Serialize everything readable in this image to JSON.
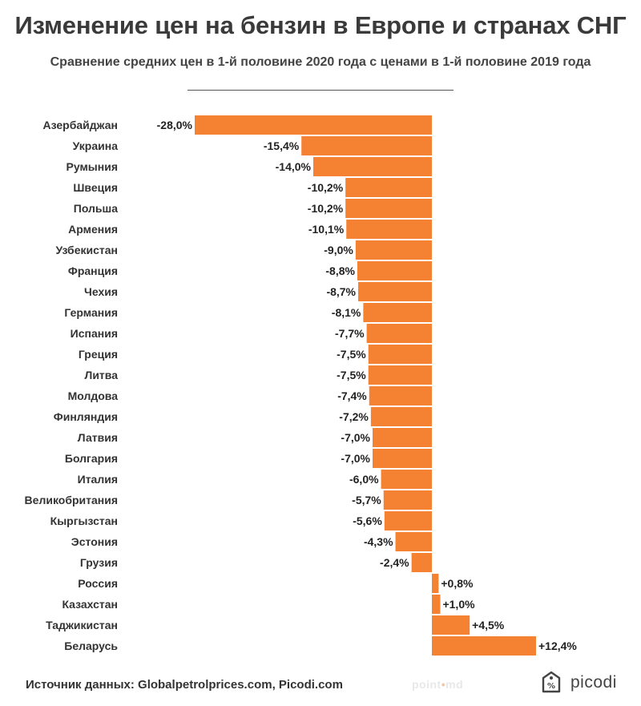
{
  "header": {
    "title": "Изменение цен на бензин в Европе и странах СНГ",
    "subtitle": "Сравнение средних цен в 1-й половине 2020 года с ценами в 1-й половине 2019 года"
  },
  "footer": {
    "source": "Источник данных: Globalpetrolprices.com, Picodi.com",
    "watermark_left": "point",
    "watermark_dot": "•",
    "watermark_right": "md",
    "brand_name": "picodi"
  },
  "colors": {
    "bar": "#f58233",
    "text": "#333333"
  },
  "chart_data": {
    "type": "bar",
    "orientation": "horizontal",
    "title": "Изменение цен на бензин в Европе и странах СНГ",
    "xlabel": "",
    "ylabel": "",
    "xlim": [
      -28,
      12.4
    ],
    "categories": [
      "Азербайджан",
      "Украина",
      "Румыния",
      "Швеция",
      "Польша",
      "Армения",
      "Узбекистан",
      "Франция",
      "Чехия",
      "Германия",
      "Испания",
      "Греция",
      "Литва",
      "Молдова",
      "Финляндия",
      "Латвия",
      "Болгария",
      "Италия",
      "Великобритания",
      "Кыргызстан",
      "Эстония",
      "Грузия",
      "Россия",
      "Казахстан",
      "Таджикистан",
      "Беларусь"
    ],
    "values": [
      -28.0,
      -15.4,
      -14.0,
      -10.2,
      -10.2,
      -10.1,
      -9.0,
      -8.8,
      -8.7,
      -8.1,
      -7.7,
      -7.5,
      -7.5,
      -7.4,
      -7.2,
      -7.0,
      -7.0,
      -6.0,
      -5.7,
      -5.6,
      -4.3,
      -2.4,
      0.8,
      1.0,
      4.5,
      12.4
    ],
    "labels": [
      "-28,0%",
      "-15,4%",
      "-14,0%",
      "-10,2%",
      "-10,2%",
      "-10,1%",
      "-9,0%",
      "-8,8%",
      "-8,7%",
      "-8,1%",
      "-7,7%",
      "-7,5%",
      "-7,5%",
      "-7,4%",
      "-7,2%",
      "-7,0%",
      "-7,0%",
      "-6,0%",
      "-5,7%",
      "-5,6%",
      "-4,3%",
      "-2,4%",
      "+0,8%",
      "+1,0%",
      "+4,5%",
      "+12,4%"
    ]
  }
}
